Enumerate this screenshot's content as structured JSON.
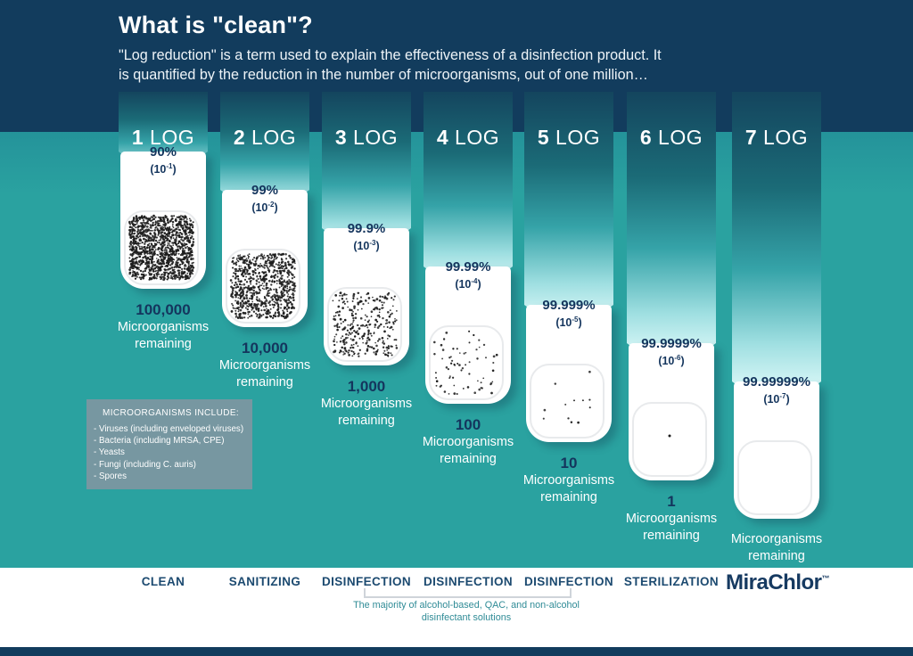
{
  "header": {
    "title": "What is \"clean\"?",
    "subtitle_line1": "\"Log reduction\" is a term used to explain the effectiveness of a disinfection product. It",
    "subtitle_line2": "is quantified by the reduction in the number of microorganisms, out of one million…"
  },
  "columns": [
    {
      "log_number": "1",
      "log_word": "LOG",
      "percent": "90%",
      "exponent": "-1",
      "count": "100,000",
      "remaining_line1": "Microorganisms",
      "remaining_line2": "remaining",
      "dots": 1300
    },
    {
      "log_number": "2",
      "log_word": "LOG",
      "percent": "99%",
      "exponent": "-2",
      "count": "10,000",
      "remaining_line1": "Microorganisms",
      "remaining_line2": "remaining",
      "dots": 800
    },
    {
      "log_number": "3",
      "log_word": "LOG",
      "percent": "99.9%",
      "exponent": "-3",
      "count": "1,000",
      "remaining_line1": "Microorganisms",
      "remaining_line2": "remaining",
      "dots": 320
    },
    {
      "log_number": "4",
      "log_word": "LOG",
      "percent": "99.99%",
      "exponent": "-4",
      "count": "100",
      "remaining_line1": "Microorganisms",
      "remaining_line2": "remaining",
      "dots": 70
    },
    {
      "log_number": "5",
      "log_word": "LOG",
      "percent": "99.999%",
      "exponent": "-5",
      "count": "10",
      "remaining_line1": "Microorganisms",
      "remaining_line2": "remaining",
      "dots": 13
    },
    {
      "log_number": "6",
      "log_word": "LOG",
      "percent": "99.9999%",
      "exponent": "-6",
      "count": "1",
      "remaining_line1": "Microorganisms",
      "remaining_line2": "remaining",
      "dots": 1
    },
    {
      "log_number": "7",
      "log_word": "LOG",
      "percent": "99.99999%",
      "exponent": "-7",
      "count": "",
      "remaining_line1": "Microorganisms",
      "remaining_line2": "remaining",
      "dots": 0
    }
  ],
  "microorganisms_box": {
    "title": "MICROORGANISMS INCLUDE:",
    "items": [
      "- Viruses (including enveloped viruses)",
      "- Bacteria (including MRSA, CPE)",
      "- Yeasts",
      "- Fungi (including C. auris)",
      "- Spores"
    ]
  },
  "footer": {
    "categories": [
      "CLEAN",
      "SANITIZING",
      "DISINFECTION",
      "DISINFECTION",
      "DISINFECTION",
      "STERILIZATION"
    ],
    "brand": "MiraChlor",
    "brand_tm": "™",
    "caption_line1": "The majority of alcohol-based, QAC, and non-alcohol",
    "caption_line2": "disinfectant solutions"
  },
  "colors": {
    "header_navy": "#123c5d",
    "background_teal": "#2aa2a0",
    "ribbon_dark": "#14455e",
    "ribbon_light": "#ebfcfc",
    "text_navy": "#14355d",
    "category_navy": "#1c4a70",
    "caption_teal": "#2f8b96",
    "micro_box_gray": "#7d96a1"
  }
}
